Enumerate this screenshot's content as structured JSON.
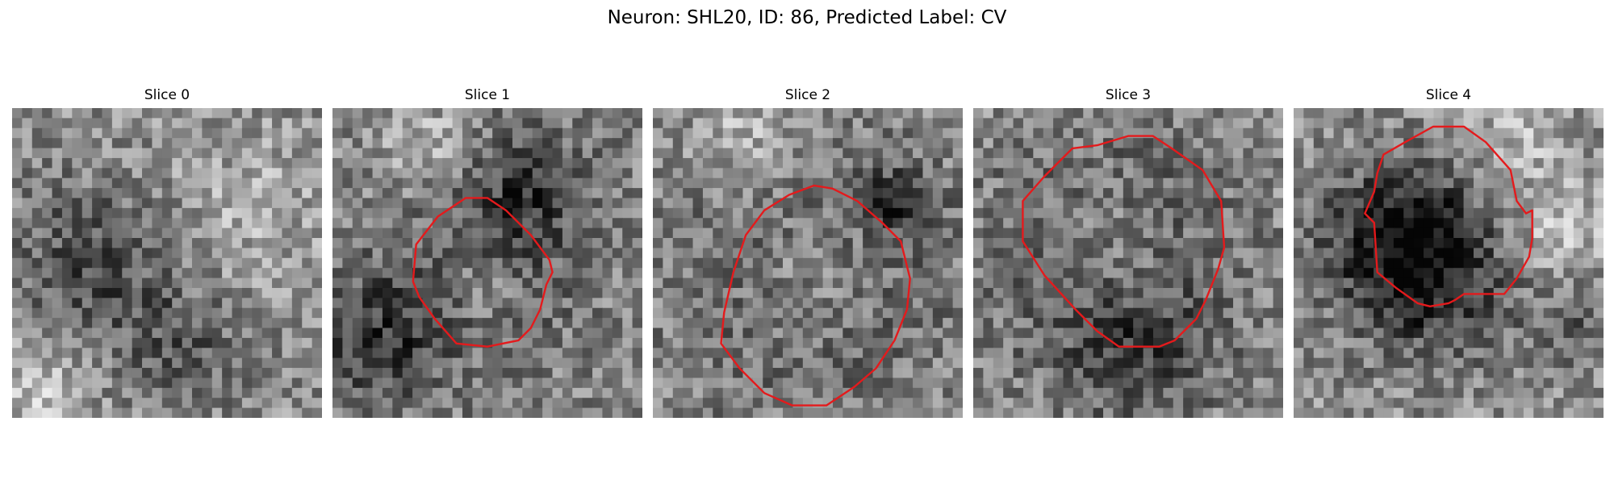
{
  "figure": {
    "title": "Neuron: SHL20, ID: 86, Predicted Label: CV",
    "grid_size": 31,
    "contour_color": "#e41a1c",
    "panels": [
      {
        "title": "Slice 0",
        "base": 0.55,
        "dark": [
          [
            0.25,
            0.5,
            0.18,
            0.25
          ],
          [
            0.55,
            0.75,
            0.15,
            0.2
          ]
        ],
        "bright": [
          [
            0.75,
            0.35,
            0.2,
            0.12
          ],
          [
            0.1,
            0.9,
            0.12,
            0.2
          ]
        ],
        "contour": []
      },
      {
        "title": "Slice 1",
        "base": 0.52,
        "dark": [
          [
            0.5,
            0.5,
            0.2,
            0.22
          ],
          [
            0.15,
            0.75,
            0.15,
            0.3
          ],
          [
            0.65,
            0.25,
            0.12,
            0.25
          ]
        ],
        "bright": [
          [
            0.48,
            0.58,
            0.08,
            0.25
          ],
          [
            0.3,
            0.12,
            0.1,
            0.2
          ]
        ],
        "contour": [
          [
            0.43,
            0.29
          ],
          [
            0.5,
            0.29
          ],
          [
            0.56,
            0.33
          ],
          [
            0.64,
            0.41
          ],
          [
            0.7,
            0.49
          ],
          [
            0.71,
            0.53
          ],
          [
            0.69,
            0.57
          ],
          [
            0.67,
            0.65
          ],
          [
            0.64,
            0.71
          ],
          [
            0.6,
            0.75
          ],
          [
            0.5,
            0.77
          ],
          [
            0.4,
            0.76
          ],
          [
            0.33,
            0.68
          ],
          [
            0.28,
            0.61
          ],
          [
            0.26,
            0.56
          ],
          [
            0.27,
            0.44
          ],
          [
            0.34,
            0.35
          ]
        ]
      },
      {
        "title": "Slice 2",
        "base": 0.55,
        "dark": [
          [
            0.5,
            0.55,
            0.3,
            0.28
          ],
          [
            0.8,
            0.3,
            0.08,
            0.3
          ]
        ],
        "bright": [
          [
            0.5,
            0.55,
            0.18,
            0.25
          ],
          [
            0.3,
            0.1,
            0.12,
            0.2
          ]
        ],
        "contour": [
          [
            0.52,
            0.25
          ],
          [
            0.58,
            0.26
          ],
          [
            0.66,
            0.3
          ],
          [
            0.74,
            0.37
          ],
          [
            0.8,
            0.43
          ],
          [
            0.83,
            0.55
          ],
          [
            0.82,
            0.65
          ],
          [
            0.78,
            0.75
          ],
          [
            0.72,
            0.84
          ],
          [
            0.65,
            0.9
          ],
          [
            0.56,
            0.96
          ],
          [
            0.45,
            0.96
          ],
          [
            0.36,
            0.92
          ],
          [
            0.28,
            0.84
          ],
          [
            0.22,
            0.76
          ],
          [
            0.23,
            0.66
          ],
          [
            0.26,
            0.53
          ],
          [
            0.3,
            0.41
          ],
          [
            0.36,
            0.33
          ],
          [
            0.44,
            0.28
          ]
        ]
      },
      {
        "title": "Slice 3",
        "base": 0.58,
        "dark": [
          [
            0.45,
            0.5,
            0.32,
            0.3
          ],
          [
            0.55,
            0.8,
            0.15,
            0.18
          ]
        ],
        "bright": [
          [
            0.45,
            0.45,
            0.15,
            0.22
          ]
        ],
        "contour": [
          [
            0.5,
            0.09
          ],
          [
            0.58,
            0.09
          ],
          [
            0.64,
            0.13
          ],
          [
            0.74,
            0.2
          ],
          [
            0.8,
            0.3
          ],
          [
            0.81,
            0.45
          ],
          [
            0.79,
            0.52
          ],
          [
            0.75,
            0.62
          ],
          [
            0.72,
            0.68
          ],
          [
            0.65,
            0.75
          ],
          [
            0.6,
            0.77
          ],
          [
            0.47,
            0.77
          ],
          [
            0.4,
            0.72
          ],
          [
            0.33,
            0.65
          ],
          [
            0.23,
            0.54
          ],
          [
            0.16,
            0.43
          ],
          [
            0.16,
            0.3
          ],
          [
            0.23,
            0.22
          ],
          [
            0.32,
            0.13
          ],
          [
            0.4,
            0.12
          ]
        ]
      },
      {
        "title": "Slice 4",
        "base": 0.56,
        "dark": [
          [
            0.35,
            0.42,
            0.18,
            0.4
          ],
          [
            0.45,
            0.55,
            0.18,
            0.3
          ],
          [
            0.9,
            0.7,
            0.1,
            0.2
          ]
        ],
        "bright": [
          [
            0.85,
            0.4,
            0.12,
            0.2
          ],
          [
            0.7,
            0.1,
            0.12,
            0.15
          ]
        ],
        "contour": [
          [
            0.45,
            0.06
          ],
          [
            0.55,
            0.06
          ],
          [
            0.62,
            0.11
          ],
          [
            0.7,
            0.2
          ],
          [
            0.72,
            0.3
          ],
          [
            0.75,
            0.34
          ],
          [
            0.77,
            0.33
          ],
          [
            0.77,
            0.42
          ],
          [
            0.76,
            0.48
          ],
          [
            0.72,
            0.55
          ],
          [
            0.68,
            0.6
          ],
          [
            0.55,
            0.6
          ],
          [
            0.52,
            0.62
          ],
          [
            0.5,
            0.63
          ],
          [
            0.44,
            0.64
          ],
          [
            0.4,
            0.63
          ],
          [
            0.33,
            0.58
          ],
          [
            0.27,
            0.53
          ],
          [
            0.26,
            0.37
          ],
          [
            0.23,
            0.34
          ],
          [
            0.26,
            0.27
          ],
          [
            0.27,
            0.21
          ],
          [
            0.29,
            0.15
          ],
          [
            0.36,
            0.11
          ]
        ]
      }
    ]
  }
}
